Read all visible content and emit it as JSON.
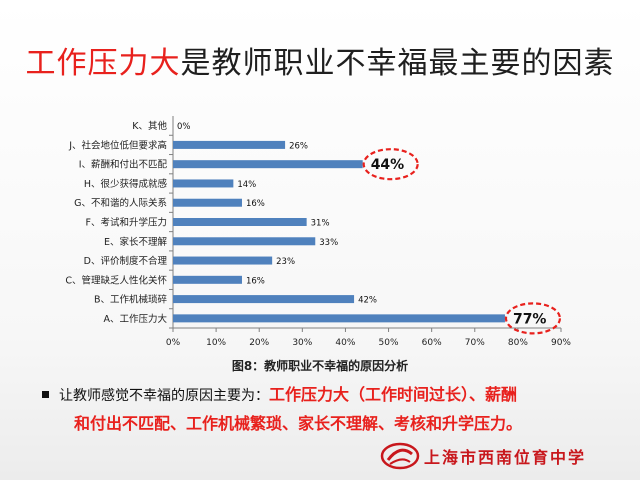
{
  "title": {
    "highlight": "工作压力大",
    "rest": "是教师职业不幸福最主要的因素"
  },
  "chart_data": {
    "type": "bar",
    "orientation": "horizontal",
    "categories": [
      "A、工作压力大",
      "B、工作机械琐碎",
      "C、管理缺乏人性化关怀",
      "D、评价制度不合理",
      "E、家长不理解",
      "F、考试和升学压力",
      "G、不和谐的人际关系",
      "H、很少获得成就感",
      "I、薪酬和付出不匹配",
      "J、社会地位低但要求高",
      "K、其他"
    ],
    "values": [
      77,
      42,
      16,
      23,
      33,
      31,
      16,
      14,
      44,
      26,
      0
    ],
    "value_labels": [
      "77%",
      "42%",
      "16%",
      "23%",
      "33%",
      "31%",
      "16%",
      "14%",
      "44%",
      "26%",
      "0%"
    ],
    "circled": [
      0,
      8
    ],
    "xlim": [
      0,
      90
    ],
    "xticks": [
      "0%",
      "10%",
      "20%",
      "30%",
      "40%",
      "50%",
      "60%",
      "70%",
      "80%",
      "90%"
    ],
    "bar_color": "#4f81bd",
    "highlight_color": "#e8211d",
    "caption": "图8：教师职业不幸福的原因分析"
  },
  "summary": {
    "lead": "让教师感觉不幸福的原因主要为：",
    "red_part1": "工作压力大（工作时间过长）、薪酬",
    "red_part2": "和付出不匹配、工作机械繁琐、家长不理解、考核和升学压力。"
  },
  "footer": {
    "school": "上海市西南位育中学"
  }
}
